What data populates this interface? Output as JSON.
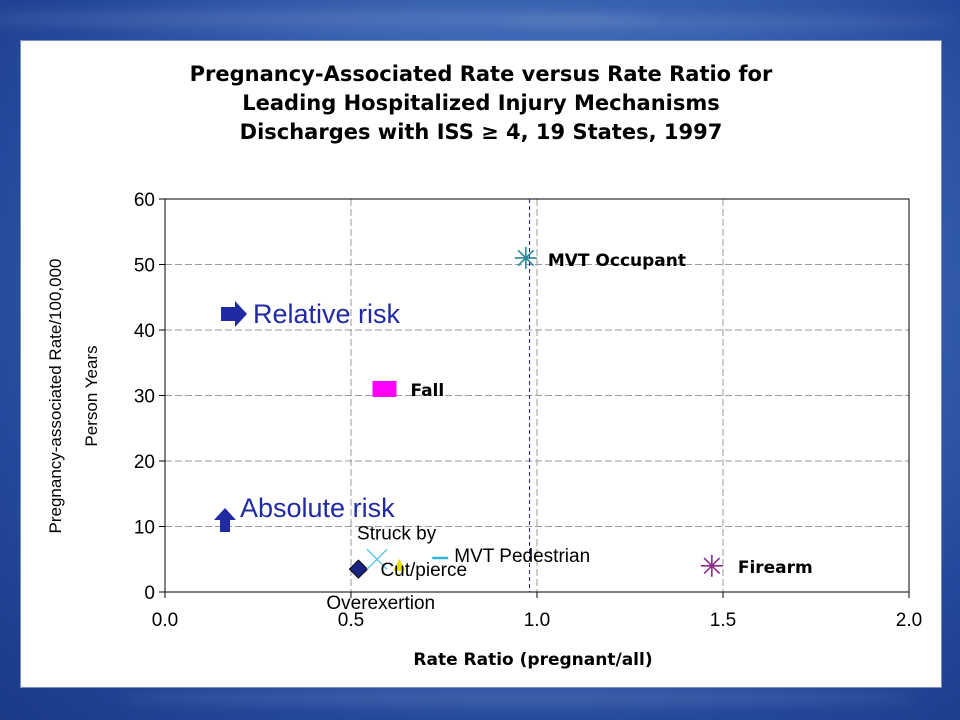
{
  "chart_data": {
    "type": "scatter",
    "title": [
      "Pregnancy-Associated Rate versus Rate Ratio for",
      "Leading Hospitalized Injury Mechanisms",
      "Discharges with ISS ≥ 4, 19 States, 1997"
    ],
    "xlabel": "Rate Ratio (pregnant/all)",
    "ylabel": [
      "Pregnancy-associated Rate/100,000",
      "Person Years"
    ],
    "xlim": [
      0.0,
      2.0
    ],
    "ylim": [
      0,
      60
    ],
    "xticks": [
      "0.0",
      "0.5",
      "1.0",
      "1.5",
      "2.0"
    ],
    "xtick_values": [
      0.0,
      0.5,
      1.0,
      1.5,
      2.0
    ],
    "yticks": [
      "0",
      "10",
      "20",
      "30",
      "40",
      "50",
      "60"
    ],
    "ytick_values": [
      0,
      10,
      20,
      30,
      40,
      50,
      60
    ],
    "grid": true,
    "reference_line_x": 0.98,
    "points": [
      {
        "name": "MVT Occupant",
        "x": 0.97,
        "y": 51,
        "marker": "star",
        "color": "#2a8a9a"
      },
      {
        "name": "Fall",
        "x": 0.59,
        "y": 31,
        "marker": "square",
        "color": "#ff00ff"
      },
      {
        "name": "Firearm",
        "x": 1.47,
        "y": 4,
        "marker": "star",
        "color": "#8b2c8b"
      },
      {
        "name": "Cut/pierce",
        "x": 0.52,
        "y": 3.5,
        "marker": "diamond",
        "color": "#1a237e"
      },
      {
        "name": "Struck by",
        "x": 0.57,
        "y": 5,
        "marker": "x",
        "color": "#5ec8e0"
      },
      {
        "name": "Overexertion",
        "x": 0.63,
        "y": 4,
        "marker": "triangle",
        "color": "#e6e000"
      },
      {
        "name": "MVT Pedestrian",
        "x": 0.74,
        "y": 5.2,
        "marker": "dash",
        "color": "#2fb6d8"
      }
    ],
    "annotations": [
      {
        "text": "Relative risk",
        "arrow": "right"
      },
      {
        "text": "Absolute risk",
        "arrow": "up"
      }
    ]
  }
}
